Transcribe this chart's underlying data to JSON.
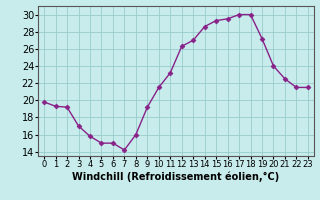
{
  "x": [
    0,
    1,
    2,
    3,
    4,
    5,
    6,
    7,
    8,
    9,
    10,
    11,
    12,
    13,
    14,
    15,
    16,
    17,
    18,
    19,
    20,
    21,
    22,
    23
  ],
  "y": [
    19.8,
    19.3,
    19.2,
    17.0,
    15.8,
    15.0,
    15.0,
    14.2,
    16.0,
    19.2,
    21.5,
    23.2,
    26.3,
    27.0,
    28.6,
    29.3,
    29.5,
    30.0,
    30.0,
    27.2,
    24.0,
    22.5,
    21.5,
    21.5
  ],
  "line_color": "#882288",
  "marker": "D",
  "marker_size": 2.5,
  "line_width": 1.0,
  "bg_color": "#c8ecec",
  "grid_color": "#99cccc",
  "xlabel": "Windchill (Refroidissement éolien,°C)",
  "xlabel_fontsize": 7,
  "xtick_labels": [
    "0",
    "1",
    "2",
    "3",
    "4",
    "5",
    "6",
    "7",
    "8",
    "9",
    "10",
    "11",
    "12",
    "13",
    "14",
    "15",
    "16",
    "17",
    "18",
    "19",
    "20",
    "21",
    "22",
    "23"
  ],
  "ylim": [
    13.5,
    31
  ],
  "yticks": [
    14,
    16,
    18,
    20,
    22,
    24,
    26,
    28,
    30
  ],
  "ytick_fontsize": 7,
  "xtick_fontsize": 6,
  "spine_color": "#555555"
}
